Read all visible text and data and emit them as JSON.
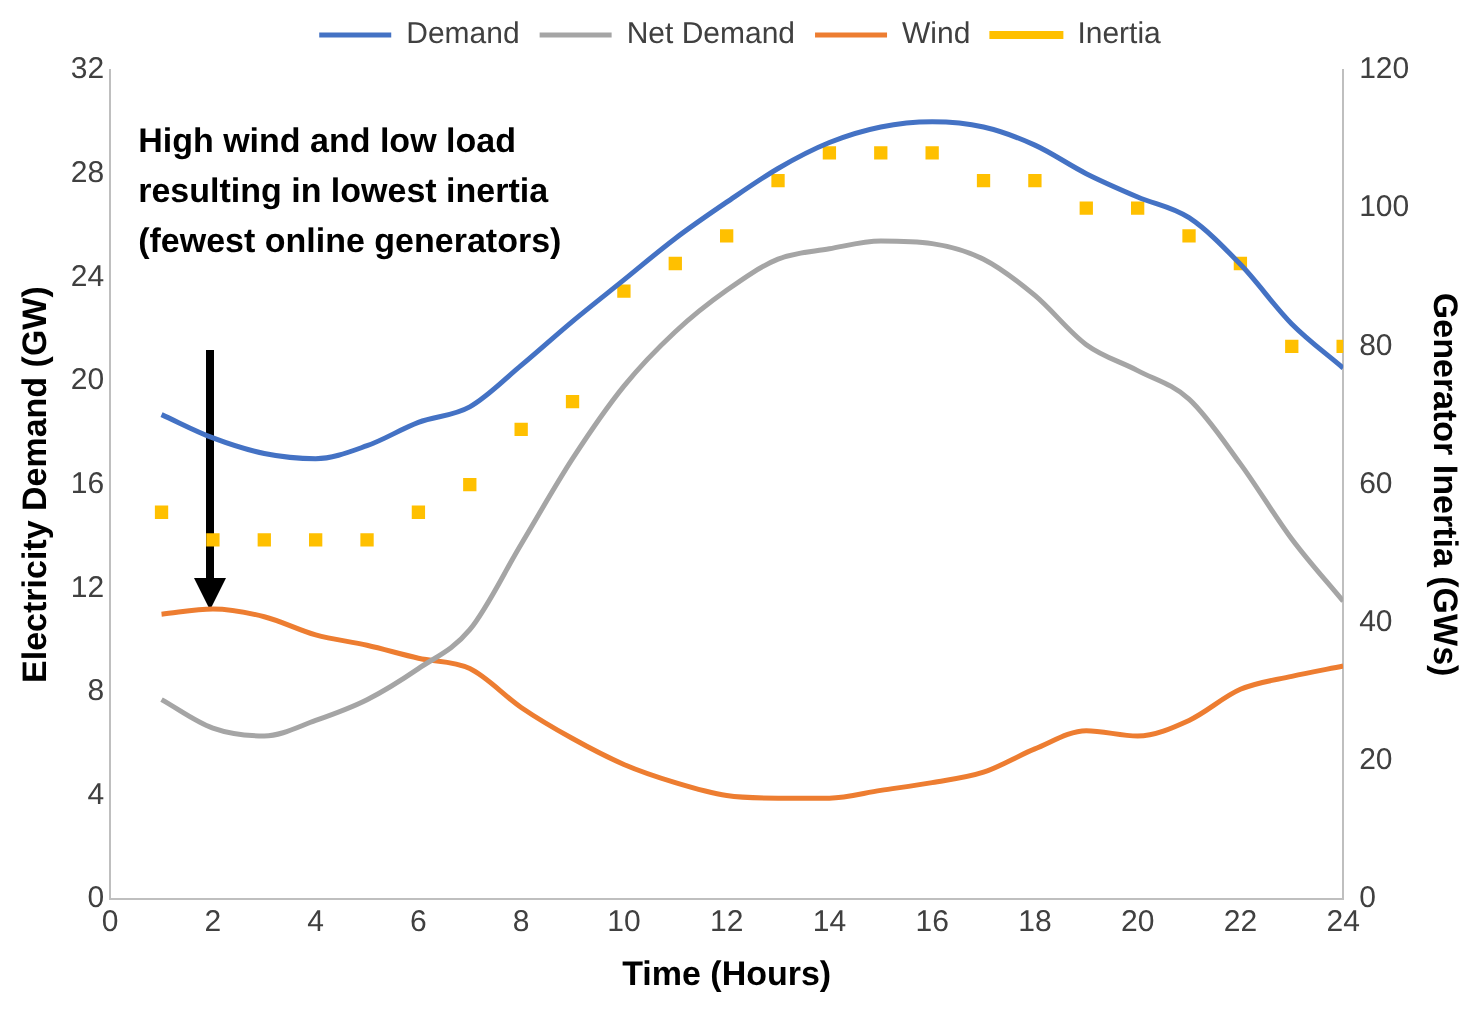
{
  "chart_data": {
    "type": "line",
    "xlabel": "Time (Hours)",
    "ylabel": "Electricity Demand (GW)",
    "y2label": "Generator Inertia (GWs)",
    "x": [
      1,
      2,
      3,
      4,
      5,
      6,
      7,
      8,
      9,
      10,
      11,
      12,
      13,
      14,
      15,
      16,
      17,
      18,
      19,
      20,
      21,
      22,
      23,
      24
    ],
    "series": [
      {
        "name": "Demand",
        "color": "#4472c4",
        "values": [
          18.7,
          17.8,
          17.2,
          17.0,
          17.5,
          18.4,
          19.0,
          20.6,
          22.3,
          23.9,
          25.5,
          26.9,
          28.2,
          29.2,
          29.8,
          30.0,
          29.8,
          29.1,
          28.0,
          27.1,
          26.3,
          24.5,
          22.2,
          20.5
        ]
      },
      {
        "name": "Net Demand",
        "color": "#a5a5a5",
        "values": [
          7.7,
          6.6,
          6.3,
          6.9,
          7.7,
          8.9,
          10.4,
          13.7,
          17.0,
          19.8,
          21.9,
          23.5,
          24.7,
          25.1,
          25.4,
          25.3,
          24.7,
          23.3,
          21.4,
          20.4,
          19.3,
          16.8,
          13.9,
          11.5
        ]
      },
      {
        "name": "Wind",
        "color": "#ed7d31",
        "values": [
          11.0,
          11.2,
          10.9,
          10.2,
          9.8,
          9.3,
          8.9,
          7.4,
          6.2,
          5.2,
          4.5,
          4.0,
          3.9,
          3.9,
          4.2,
          4.5,
          4.9,
          5.8,
          6.5,
          6.3,
          6.9,
          8.1,
          8.6,
          9.0
        ]
      },
      {
        "name": "Inertia",
        "color": "#ffc000",
        "type": "scatter",
        "marker": "square",
        "axis": "y2",
        "values": [
          56,
          52,
          52,
          52,
          52,
          56,
          60,
          68,
          72,
          88,
          92,
          96,
          104,
          108,
          108,
          108,
          104,
          104,
          100,
          100,
          96,
          92,
          80,
          80
        ]
      }
    ],
    "xlim": [
      0,
      24
    ],
    "xticks": [
      0,
      2,
      4,
      6,
      8,
      10,
      12,
      14,
      16,
      18,
      20,
      22,
      24
    ],
    "ylim": [
      0,
      32
    ],
    "yticks": [
      0,
      4,
      8,
      12,
      16,
      20,
      24,
      28,
      32
    ],
    "y2lim": [
      0,
      120
    ],
    "y2ticks": [
      0,
      20,
      40,
      60,
      80,
      100,
      120
    ],
    "legend": "top",
    "annotations": [
      "High wind and low load resulting in lowest inertia (fewest online generators)"
    ]
  }
}
